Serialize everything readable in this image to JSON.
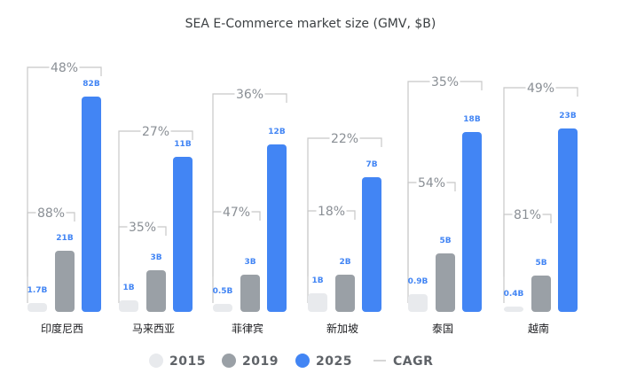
{
  "chart_data": {
    "type": "bar",
    "title": "SEA E-Commerce market size (GMV, $B)",
    "categories": [
      "印度尼西",
      "马来西亚",
      "菲律宾",
      "新加坡",
      "泰国",
      "越南"
    ],
    "series": [
      {
        "name": "2015",
        "color": "#e8eaed",
        "values": [
          1.7,
          1.0,
          0.5,
          1.0,
          0.9,
          0.4
        ],
        "labels": [
          "1.7B",
          "1B",
          "0.5B",
          "1B",
          "0.9B",
          "0.4B"
        ]
      },
      {
        "name": "2019",
        "color": "#9aa0a6",
        "values": [
          21,
          3,
          3,
          2,
          5,
          5
        ],
        "labels": [
          "21B",
          "3B",
          "3B",
          "2B",
          "5B",
          "5B"
        ]
      },
      {
        "name": "2025",
        "color": "#4285f4",
        "values": [
          82,
          11,
          12,
          7,
          18,
          23
        ],
        "labels": [
          "82B",
          "11B",
          "12B",
          "7B",
          "18B",
          "23B"
        ]
      }
    ],
    "cagr_2015_2019": [
      "88%",
      "35%",
      "47%",
      "18%",
      "54%",
      "81%"
    ],
    "cagr_2019_2025": [
      "48%",
      "27%",
      "36%",
      "22%",
      "35%",
      "49%"
    ],
    "legend": [
      "2015",
      "2019",
      "2025",
      "CAGR"
    ],
    "value_label_color": "#4285f4",
    "bracket_color": "#c8c8c8"
  }
}
